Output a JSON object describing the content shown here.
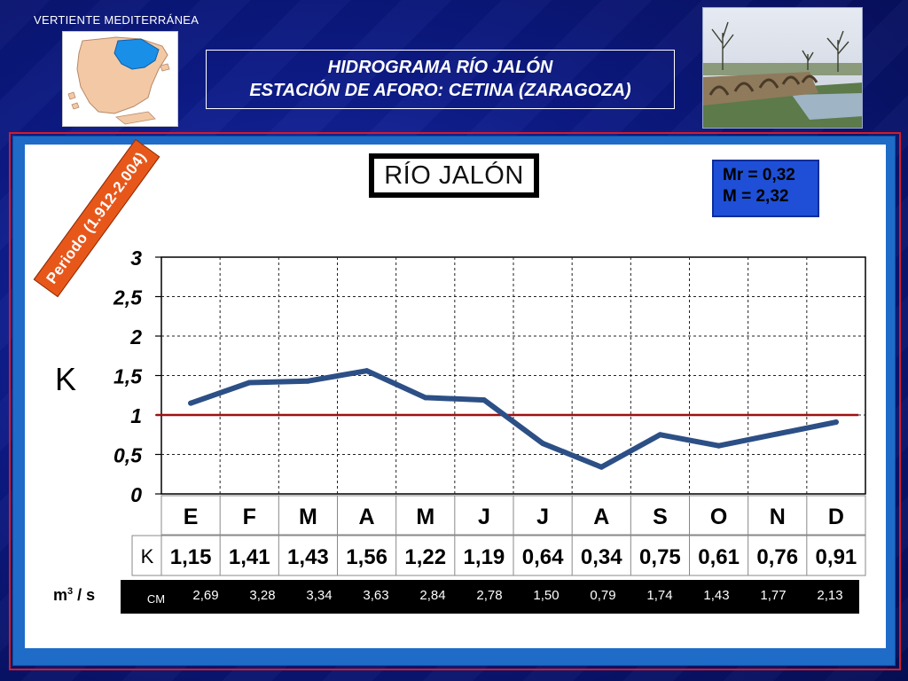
{
  "header": {
    "region": "VERTIENTE  MEDITERRÁNEA",
    "title_line1": "HIDROGRAMA  RÍO  JALÓN",
    "title_line2": "ESTACIÓN DE AFORO:  CETINA (ZARAGOZA)"
  },
  "chart_title": "RÍO JALÓN",
  "stats": {
    "mr": "Mr = 0,32",
    "m": "M = 2,32"
  },
  "period": "Periodo (1.912-2.004)",
  "y_axis_label": "K",
  "m3_label_text": "m",
  "m3_label_sup": "3",
  "m3_label_suffix": " / s",
  "table": {
    "k_row_label": "K",
    "cm_row_label": "CM"
  },
  "colors": {
    "series": "#2c4f86",
    "reference_line": "#a01010",
    "slide_background": "#0c1a85",
    "frame_red": "#d21c2a",
    "frame_blue": "#1e6cc8",
    "period_banner": "#e8571a",
    "stats_box": "#1e4fd6"
  },
  "chart_data": {
    "type": "line",
    "title": "RÍO JALÓN",
    "ylabel": "K",
    "xlabel": "",
    "ylim": [
      0,
      3
    ],
    "yticks": [
      "0",
      "0,5",
      "1",
      "1,5",
      "2",
      "2,5",
      "3"
    ],
    "ytick_values": [
      0,
      0.5,
      1,
      1.5,
      2,
      2.5,
      3
    ],
    "categories": [
      "E",
      "F",
      "M",
      "A",
      "M",
      "J",
      "J",
      "A",
      "S",
      "O",
      "N",
      "D"
    ],
    "grid": true,
    "reference_line": 1,
    "series": [
      {
        "values": [
          1.15,
          1.41,
          1.43,
          1.56,
          1.22,
          1.19,
          0.64,
          0.34,
          0.75,
          0.61,
          0.76,
          0.91
        ],
        "labels": [
          "1,15",
          "1,41",
          "1,43",
          "1,56",
          "1,22",
          "1,19",
          "0,64",
          "0,34",
          "0,75",
          "0,61",
          "0,76",
          "0,91"
        ]
      }
    ],
    "flow_m3s": [
      2.69,
      3.28,
      3.34,
      3.63,
      2.84,
      2.78,
      1.5,
      0.79,
      1.74,
      1.43,
      1.77,
      2.13
    ],
    "flow_labels": [
      "2,69",
      "3,28",
      "3,34",
      "3,63",
      "2,84",
      "2,78",
      "1,50",
      "0,79",
      "1,74",
      "1,43",
      "1,77",
      "2,13"
    ]
  }
}
